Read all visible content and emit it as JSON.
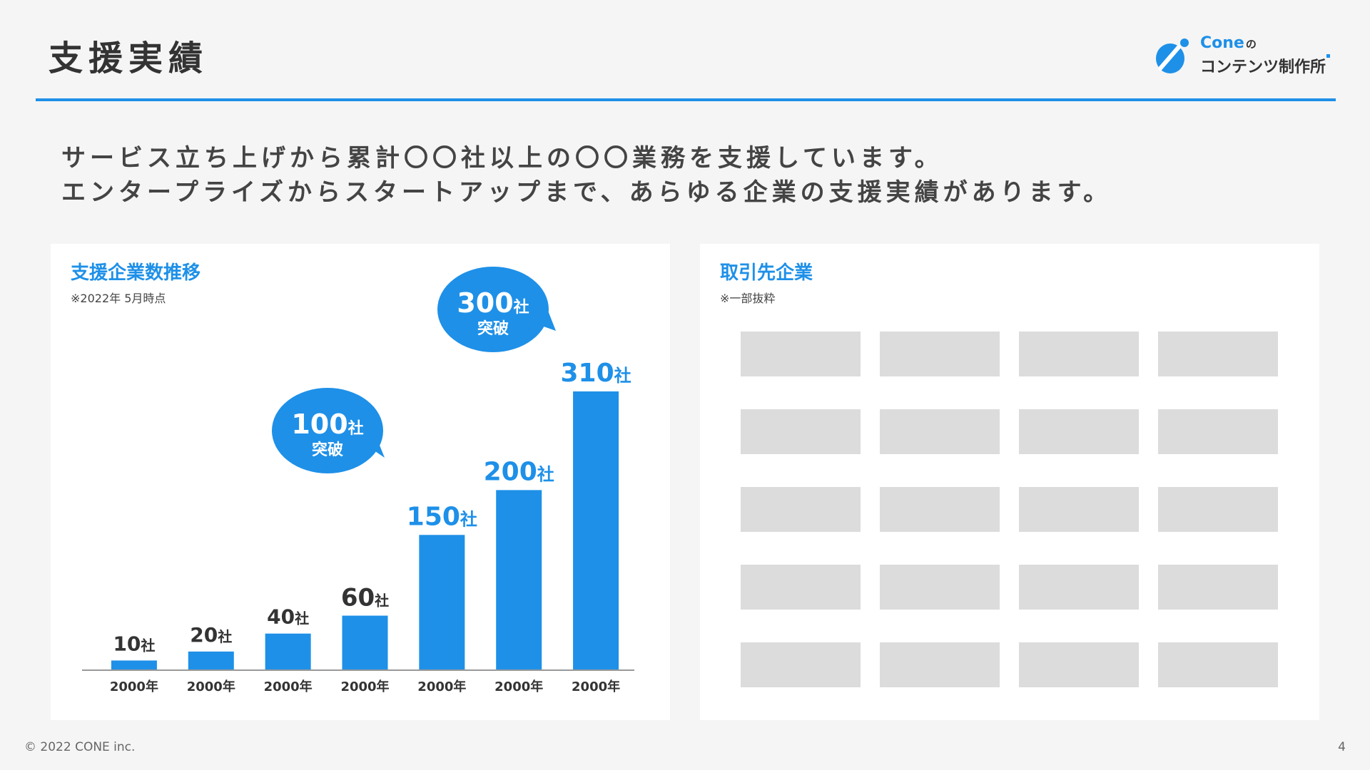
{
  "header": {
    "title": "支援実績",
    "logo_name": "Cone",
    "logo_no": "の",
    "logo_sub": "コンテンツ制作所"
  },
  "lead": {
    "line1": "サービス立ち上げから累計〇〇社以上の〇〇業務を支援しています。",
    "line2": "エンタープライズからスタートアップまで、あらゆる企業の支援実績があります。"
  },
  "left_panel": {
    "title": "支援企業数推移",
    "note": "※2022年 5月時点"
  },
  "right_panel": {
    "title": "取引先企業",
    "note": "※一部抜粋",
    "rows": 5,
    "cols": 4
  },
  "colors": {
    "accent": "#1e90e8",
    "bar": "#1e90e8",
    "text_dark": "#333333",
    "placeholder": "#dcdcdc"
  },
  "chart_data": {
    "type": "bar",
    "categories": [
      "2000年",
      "2000年",
      "2000年",
      "2000年",
      "2000年",
      "2000年",
      "2000年"
    ],
    "values": [
      10,
      20,
      40,
      60,
      150,
      200,
      310
    ],
    "value_labels": [
      "10",
      "20",
      "40",
      "60",
      "150",
      "200",
      "310"
    ],
    "unit": "社",
    "highlight_from_index": 4,
    "callouts": [
      {
        "value": "100",
        "unit": "社",
        "text": "突破"
      },
      {
        "value": "300",
        "unit": "社",
        "text": "突破"
      }
    ],
    "title": "支援企業数推移",
    "xlabel": "",
    "ylabel": "",
    "ylim": [
      0,
      310
    ]
  },
  "footer": {
    "copyright": "© 2022 CONE inc.",
    "page": "4"
  }
}
